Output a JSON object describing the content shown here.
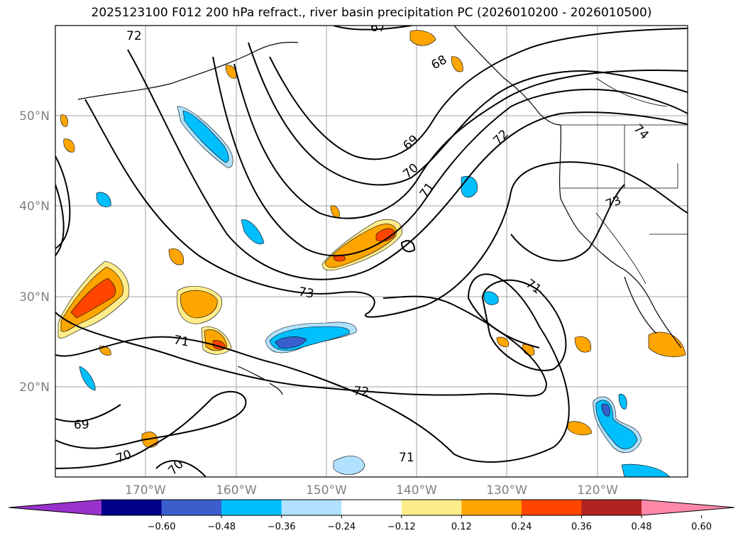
{
  "title": "2025123100 F012 200 hPa refract., river basin precipitation PC (2026010200 - 2026010500)",
  "lat_labels": [
    "50°N",
    "40°N",
    "30°N",
    "20°N"
  ],
  "lon_labels": [
    "170°W",
    "160°W",
    "150°W",
    "140°W",
    "130°W",
    "120°W"
  ],
  "contour_labels": [
    "72",
    "67",
    "68",
    "69",
    "70",
    "71",
    "72",
    "74",
    "73",
    "73",
    "71",
    "71",
    "72",
    "71",
    "69",
    "70",
    "70"
  ],
  "colorbar": {
    "ticks": [
      "−0.60",
      "−0.48",
      "−0.36",
      "−0.24",
      "−0.12",
      "0.12",
      "0.24",
      "0.36",
      "0.48",
      "0.60"
    ],
    "colors": [
      "#9932cc",
      "#00008b",
      "#3a5fcd",
      "#00bfff",
      "#b0e2ff",
      "#ffffff",
      "#ffec8b",
      "#ffa500",
      "#ff4500",
      "#b22222",
      "#ff88a8"
    ]
  },
  "colors": {
    "yellow": "#ffec8b",
    "orange": "#ffa500",
    "red": "#ff4500",
    "light_blue": "#b0e2ff",
    "blue": "#00bfff",
    "dark_blue": "#3a5fcd"
  }
}
